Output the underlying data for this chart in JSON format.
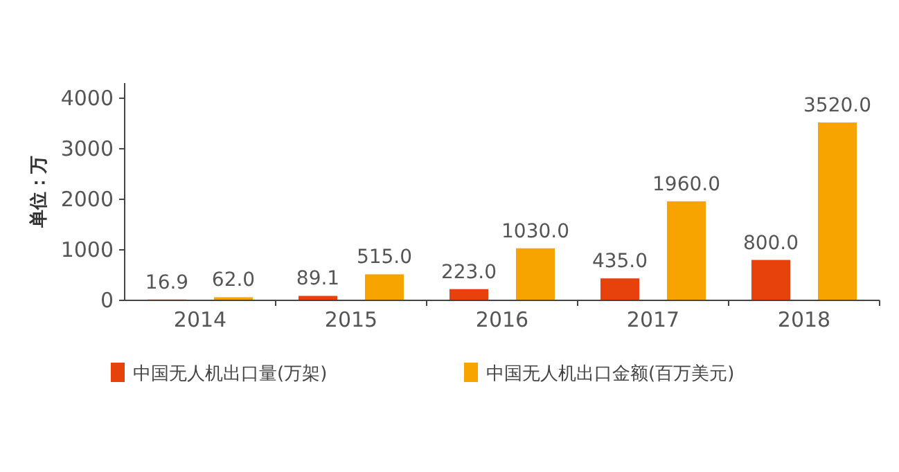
{
  "chart_data": {
    "type": "bar",
    "ylabel": "单位：万",
    "categories": [
      "2014",
      "2015",
      "2016",
      "2017",
      "2018"
    ],
    "series": [
      {
        "name": "中国无人机出口量(万架)",
        "color": "#e8420c",
        "values": [
          16.9,
          89.1,
          223.0,
          435.0,
          800.0
        ],
        "value_labels": [
          "16.9",
          "89.1",
          "223.0",
          "435.0",
          "800.0"
        ]
      },
      {
        "name": "中国无人机出口金额(百万美元)",
        "color": "#f7a400",
        "values": [
          62.0,
          515.0,
          1030.0,
          1960.0,
          3520.0
        ],
        "value_labels": [
          "62.0",
          "515.0",
          "1030.0",
          "1960.0",
          "3520.0"
        ]
      }
    ],
    "ylim": [
      0,
      4300
    ],
    "yticks": [
      0,
      1000,
      2000,
      3000,
      4000
    ],
    "legend": "bottom"
  }
}
